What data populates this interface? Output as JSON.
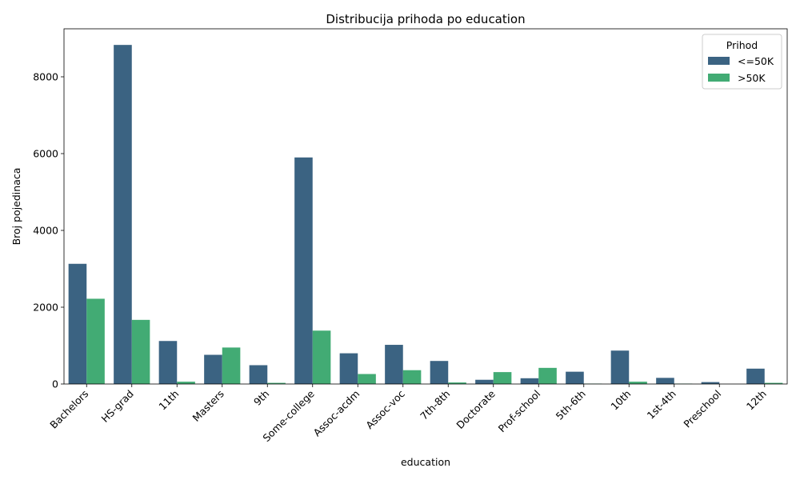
{
  "chart_data": {
    "type": "bar",
    "title": "Distribucija prihoda po education",
    "xlabel": "education",
    "ylabel": "Broj pojedinaca",
    "ylim": [
      0,
      9250
    ],
    "yticks": [
      0,
      2000,
      4000,
      6000,
      8000
    ],
    "grid": false,
    "legend_placement": "top-right",
    "legend_title": "Prihod",
    "categories": [
      "Bachelors",
      "HS-grad",
      "11th",
      "Masters",
      "9th",
      "Some-college",
      "Assoc-acdm",
      "Assoc-voc",
      "7th-8th",
      "Doctorate",
      "Prof-school",
      "5th-6th",
      "10th",
      "1st-4th",
      "Preschool",
      "12th"
    ],
    "series": [
      {
        "name": "<=50K",
        "color": "#3b6382",
        "values": [
          3130,
          8830,
          1120,
          760,
          490,
          5900,
          800,
          1020,
          600,
          110,
          150,
          320,
          870,
          160,
          50,
          400
        ]
      },
      {
        "name": ">50K",
        "color": "#42ab74",
        "values": [
          2220,
          1670,
          60,
          950,
          30,
          1390,
          260,
          360,
          40,
          310,
          420,
          10,
          60,
          10,
          0,
          30
        ]
      }
    ]
  }
}
